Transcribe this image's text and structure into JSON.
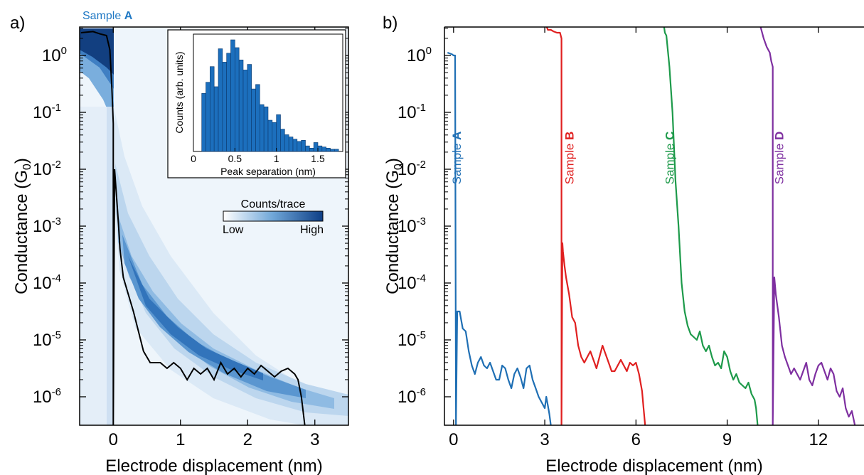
{
  "panel_a": {
    "label": "a)",
    "sample_title_prefix": "Sample ",
    "sample_title_letter": "A",
    "xlabel": "Electrode displacement (nm)",
    "ylabel": "Conductance (G",
    "ylabel_sub": "0",
    "ylabel_close": ")",
    "colorbar": {
      "title": "Counts/trace",
      "low": "Low",
      "high": "High"
    },
    "colors": {
      "density": "#1c5fa6",
      "trace": "#000000",
      "accent": "#1f78c4"
    }
  },
  "panel_b": {
    "label": "b)",
    "xlabel": "Electrode displacement (nm)",
    "ylabel": "Conductance (G",
    "ylabel_sub": "0",
    "ylabel_close": ")"
  },
  "chart_data": [
    {
      "id": "main_a",
      "type": "heatmap",
      "xlim": [
        -0.5,
        3.5
      ],
      "ylim_log10": [
        -6.5,
        0.5
      ],
      "y_scale": "log",
      "x_ticks": [
        "0",
        "1",
        "2",
        "3"
      ],
      "x_tick_values": [
        0,
        1,
        2,
        3
      ],
      "y_ticks": [
        "10",
        "10",
        "10",
        "10",
        "10",
        "10",
        "10"
      ],
      "y_tick_exps": [
        "0",
        "-1",
        "-2",
        "-3",
        "-4",
        "-5",
        "-6"
      ],
      "y_tick_values_log10": [
        0,
        -1,
        -2,
        -3,
        -4,
        -5,
        -6
      ],
      "trace": {
        "x": [
          -0.48,
          -0.3,
          -0.2,
          -0.1,
          -0.05,
          -0.02,
          0.0,
          0.0,
          0.02,
          0.05,
          0.08,
          0.1,
          0.12,
          0.15,
          0.2,
          0.3,
          0.45,
          0.55,
          0.7,
          0.8,
          0.9,
          1.0,
          1.1,
          1.2,
          1.3,
          1.4,
          1.5,
          1.6,
          1.7,
          1.8,
          1.9,
          2.0,
          2.1,
          2.2,
          2.3,
          2.4,
          2.5,
          2.6,
          2.7,
          2.75,
          2.8,
          2.85
        ],
        "y_log10": [
          0.4,
          0.42,
          0.38,
          0.35,
          0.1,
          -0.6,
          -1.2,
          -6.5,
          -2.0,
          -2.5,
          -3.0,
          -3.4,
          -3.6,
          -3.9,
          -4.1,
          -4.5,
          -5.2,
          -5.4,
          -5.4,
          -5.5,
          -5.4,
          -5.5,
          -5.7,
          -5.5,
          -5.6,
          -5.5,
          -5.7,
          -5.4,
          -5.6,
          -5.5,
          -5.65,
          -5.5,
          -5.6,
          -5.45,
          -5.55,
          -5.65,
          -5.55,
          -5.5,
          -5.6,
          -5.7,
          -6.0,
          -6.5
        ]
      }
    },
    {
      "id": "inset_a",
      "type": "bar",
      "xlabel": "Peak separation (nm)",
      "ylabel": "Counts (arb. units)",
      "xlim": [
        0,
        1.8
      ],
      "x_ticks": [
        "0",
        "0.5",
        "1",
        "1.5"
      ],
      "x_tick_values": [
        0,
        0.5,
        1,
        1.5
      ],
      "bin_width": 0.05,
      "bin_starts": [
        0.1,
        0.15,
        0.2,
        0.25,
        0.3,
        0.35,
        0.4,
        0.45,
        0.5,
        0.55,
        0.6,
        0.65,
        0.7,
        0.75,
        0.8,
        0.85,
        0.9,
        0.95,
        1.0,
        1.05,
        1.1,
        1.15,
        1.2,
        1.25,
        1.3,
        1.35,
        1.4,
        1.45,
        1.5,
        1.55,
        1.6,
        1.65,
        1.7
      ],
      "values": [
        0.52,
        0.62,
        0.76,
        0.58,
        0.92,
        0.8,
        0.88,
        1.0,
        0.93,
        0.82,
        0.73,
        0.78,
        0.56,
        0.6,
        0.42,
        0.4,
        0.28,
        0.26,
        0.33,
        0.2,
        0.15,
        0.13,
        0.11,
        0.09,
        0.1,
        0.05,
        0.03,
        0.08,
        0.05,
        0.04,
        0.03,
        0.02,
        0.02
      ]
    },
    {
      "id": "main_b",
      "type": "line",
      "xlim": [
        -0.3,
        13.5
      ],
      "ylim_log10": [
        -6.5,
        0.5
      ],
      "y_scale": "log",
      "x_ticks": [
        "0",
        "3",
        "6",
        "9",
        "12"
      ],
      "x_tick_values": [
        0,
        3,
        6,
        9,
        12
      ],
      "y_ticks": [
        "10",
        "10",
        "10",
        "10",
        "10",
        "10",
        "10"
      ],
      "y_tick_exps": [
        "0",
        "-1",
        "-2",
        "-3",
        "-4",
        "-5",
        "-6"
      ],
      "y_tick_values_log10": [
        0,
        -1,
        -2,
        -3,
        -4,
        -5,
        -6
      ],
      "series": [
        {
          "name": "Sample A",
          "prefix": "Sample ",
          "letter": "A",
          "color": "#1f6fb4",
          "label_x": 0.1,
          "x": [
            -0.2,
            -0.05,
            0.0,
            0.05,
            0.08,
            0.12,
            0.2,
            0.3,
            0.4,
            0.5,
            0.6,
            0.7,
            0.8,
            0.9,
            1.0,
            1.1,
            1.2,
            1.3,
            1.4,
            1.5,
            1.6,
            1.7,
            1.8,
            1.9,
            2.0,
            2.1,
            2.2,
            2.3,
            2.4,
            2.5,
            2.6,
            2.7,
            2.8,
            2.9,
            3.0,
            3.05,
            3.1,
            3.15,
            3.2
          ],
          "y_log10": [
            0.05,
            0.02,
            0.0,
            0.0,
            -6.5,
            -4.5,
            -4.5,
            -4.8,
            -4.85,
            -5.2,
            -5.45,
            -5.6,
            -5.4,
            -5.3,
            -5.45,
            -5.5,
            -5.4,
            -5.55,
            -5.7,
            -5.7,
            -5.45,
            -5.5,
            -5.7,
            -5.85,
            -5.6,
            -5.5,
            -5.65,
            -5.85,
            -5.5,
            -5.45,
            -5.7,
            -5.85,
            -6.0,
            -6.1,
            -6.2,
            -6.0,
            -6.15,
            -6.3,
            -6.5
          ]
        },
        {
          "name": "Sample B",
          "prefix": "Sample ",
          "letter": "B",
          "color": "#e02020",
          "label_x": 3.8,
          "x": [
            3.0,
            3.1,
            3.2,
            3.3,
            3.4,
            3.5,
            3.55,
            3.55,
            3.58,
            3.6,
            3.65,
            3.7,
            3.8,
            3.9,
            4.0,
            4.1,
            4.2,
            4.3,
            4.4,
            4.5,
            4.6,
            4.7,
            4.8,
            4.9,
            5.0,
            5.1,
            5.2,
            5.3,
            5.4,
            5.5,
            5.6,
            5.7,
            5.8,
            5.9,
            6.0,
            6.1,
            6.2,
            6.25,
            6.3
          ],
          "y_log10": [
            0.6,
            0.45,
            0.45,
            0.42,
            0.4,
            0.4,
            0.3,
            -6.5,
            -3.3,
            -3.45,
            -3.7,
            -3.9,
            -4.2,
            -4.6,
            -4.7,
            -5.1,
            -5.3,
            -5.4,
            -5.3,
            -5.2,
            -5.35,
            -5.5,
            -5.3,
            -5.1,
            -5.25,
            -5.4,
            -5.55,
            -5.55,
            -5.45,
            -5.35,
            -5.45,
            -5.55,
            -5.4,
            -5.45,
            -5.4,
            -5.6,
            -5.9,
            -6.2,
            -6.5
          ]
        },
        {
          "name": "Sample C",
          "prefix": "Sample ",
          "letter": "C",
          "color": "#1d9a4a",
          "label_x": 7.1,
          "x": [
            6.9,
            6.95,
            7.0,
            7.1,
            7.2,
            7.3,
            7.4,
            7.5,
            7.6,
            7.7,
            7.8,
            7.9,
            8.0,
            8.1,
            8.2,
            8.3,
            8.4,
            8.5,
            8.6,
            8.7,
            8.8,
            8.9,
            9.0,
            9.1,
            9.2,
            9.3,
            9.4,
            9.5,
            9.6,
            9.7,
            9.8,
            9.9,
            9.95,
            10.0
          ],
          "y_log10": [
            0.6,
            0.4,
            0.35,
            -0.2,
            -1.0,
            -2.2,
            -3.0,
            -4.0,
            -4.5,
            -4.75,
            -4.9,
            -4.95,
            -5.0,
            -4.85,
            -5.1,
            -5.2,
            -5.1,
            -5.3,
            -5.45,
            -5.4,
            -5.5,
            -5.2,
            -5.3,
            -5.55,
            -5.7,
            -5.6,
            -5.75,
            -5.8,
            -5.85,
            -5.75,
            -5.95,
            -6.05,
            -6.2,
            -6.5
          ]
        },
        {
          "name": "Sample D",
          "prefix": "Sample ",
          "letter": "D",
          "color": "#7e2fa0",
          "label_x": 10.7,
          "x": [
            10.1,
            10.2,
            10.3,
            10.4,
            10.45,
            10.5,
            10.5,
            10.55,
            10.6,
            10.7,
            10.8,
            10.9,
            11.0,
            11.1,
            11.2,
            11.3,
            11.4,
            11.5,
            11.6,
            11.7,
            11.8,
            11.9,
            12.0,
            12.1,
            12.2,
            12.3,
            12.4,
            12.5,
            12.6,
            12.7,
            12.8,
            12.9,
            13.0,
            13.1,
            13.2
          ],
          "y_log10": [
            0.5,
            0.3,
            0.15,
            0.05,
            -0.1,
            -0.2,
            -6.5,
            -3.9,
            -4.2,
            -4.6,
            -5.1,
            -5.3,
            -5.45,
            -5.6,
            -5.5,
            -5.6,
            -5.7,
            -5.55,
            -5.4,
            -5.7,
            -5.8,
            -5.6,
            -5.45,
            -5.4,
            -5.55,
            -5.7,
            -5.5,
            -5.6,
            -5.9,
            -6.0,
            -5.85,
            -6.2,
            -6.35,
            -6.25,
            -6.5
          ]
        }
      ]
    }
  ]
}
